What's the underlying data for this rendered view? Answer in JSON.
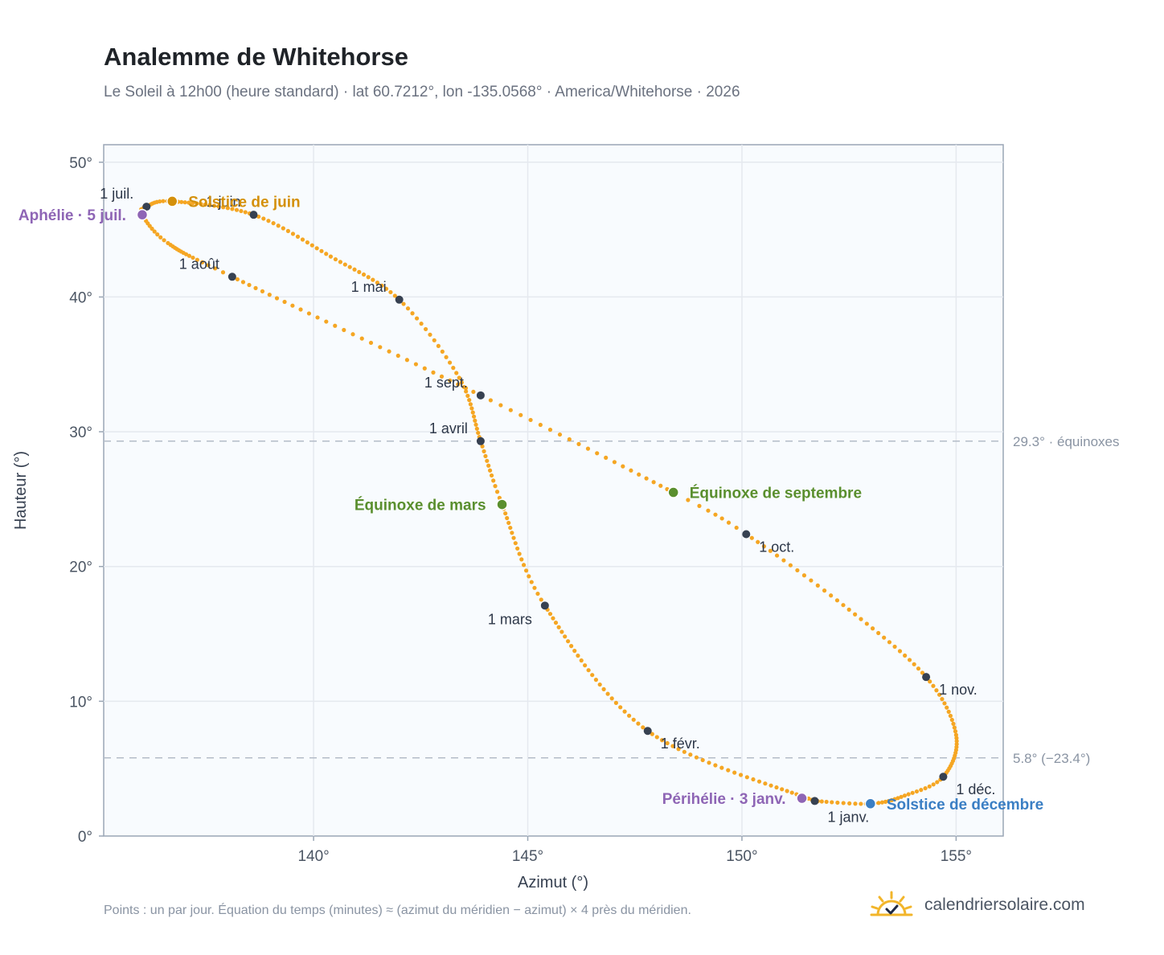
{
  "header": {
    "title": "Analemme de Whitehorse",
    "subtitle": "Le Soleil à 12h00 (heure standard) · lat 60.7212°, lon -135.0568° · America/Whitehorse · 2026"
  },
  "footer": {
    "note": "Points : un par jour. Équation du temps (minutes) ≈ (azimut du méridien − azimut) × 4 près du méridien.",
    "brand": "calendriersolaire.com",
    "brand_icon": "sun-check-icon"
  },
  "colors": {
    "curve": "#f5a623",
    "month_marker": "#374151",
    "solstice_june": "#d4900b",
    "solstice_december": "#3b7fc4",
    "equinox": "#5a8f2e",
    "apsis": "#8e65b5",
    "grid": "#e5e9ef",
    "plot_bg": "#f8fbfe",
    "ref_line": "#b4bcc8"
  },
  "chart_data": {
    "type": "scatter",
    "xlabel": "Azimut (°)",
    "ylabel": "Hauteur (°)",
    "xlim": [
      135.1,
      156.1
    ],
    "ylim": [
      0,
      51.3
    ],
    "xticks": [
      140,
      145,
      150,
      155
    ],
    "yticks": [
      0,
      10,
      20,
      30,
      40,
      50
    ],
    "tick_suffix": "°",
    "grid": true,
    "anchors": [
      {
        "day": 0,
        "x": 151.7,
        "y": 2.6
      },
      {
        "day": 31,
        "x": 147.8,
        "y": 7.8
      },
      {
        "day": 59,
        "x": 145.4,
        "y": 17.1
      },
      {
        "day": 78,
        "x": 144.4,
        "y": 24.6
      },
      {
        "day": 90,
        "x": 143.9,
        "y": 29.3
      },
      {
        "day": 105,
        "x": 143.4,
        "y": 34.0
      },
      {
        "day": 120,
        "x": 142.0,
        "y": 39.8
      },
      {
        "day": 135,
        "x": 140.4,
        "y": 43.0
      },
      {
        "day": 151,
        "x": 138.6,
        "y": 46.1
      },
      {
        "day": 171,
        "x": 136.7,
        "y": 47.1
      },
      {
        "day": 181,
        "x": 136.1,
        "y": 46.7
      },
      {
        "day": 185,
        "x": 136.0,
        "y": 46.1
      },
      {
        "day": 196,
        "x": 136.6,
        "y": 44.0
      },
      {
        "day": 212,
        "x": 138.1,
        "y": 41.5
      },
      {
        "day": 243,
        "x": 143.9,
        "y": 32.7
      },
      {
        "day": 265,
        "x": 148.4,
        "y": 25.5
      },
      {
        "day": 273,
        "x": 150.1,
        "y": 22.4
      },
      {
        "day": 289,
        "x": 152.5,
        "y": 16.8
      },
      {
        "day": 304,
        "x": 154.3,
        "y": 11.8
      },
      {
        "day": 318,
        "x": 155.0,
        "y": 7.5
      },
      {
        "day": 334,
        "x": 154.7,
        "y": 4.4
      },
      {
        "day": 344,
        "x": 153.8,
        "y": 3.0
      },
      {
        "day": 354,
        "x": 153.0,
        "y": 2.4
      },
      {
        "day": 365,
        "x": 151.7,
        "y": 2.6
      }
    ],
    "month_markers": [
      {
        "label": "1 janv.",
        "x": 151.7,
        "y": 2.6,
        "pos": "below-right"
      },
      {
        "label": "1 févr.",
        "x": 147.8,
        "y": 7.8,
        "pos": "right-below"
      },
      {
        "label": "1 mars",
        "x": 145.4,
        "y": 17.1,
        "pos": "left-below"
      },
      {
        "label": "1 avril",
        "x": 143.9,
        "y": 29.3,
        "pos": "left-above"
      },
      {
        "label": "1 mai",
        "x": 142.0,
        "y": 39.8,
        "pos": "left-above"
      },
      {
        "label": "1 juin",
        "x": 138.6,
        "y": 46.1,
        "pos": "left-above"
      },
      {
        "label": "1 juil.",
        "x": 136.1,
        "y": 46.7,
        "pos": "left-above"
      },
      {
        "label": "1 août",
        "x": 138.1,
        "y": 41.5,
        "pos": "left-above"
      },
      {
        "label": "1 sept.",
        "x": 143.9,
        "y": 32.7,
        "pos": "left-above"
      },
      {
        "label": "1 oct.",
        "x": 150.1,
        "y": 22.4,
        "pos": "right-below"
      },
      {
        "label": "1 nov.",
        "x": 154.3,
        "y": 11.8,
        "pos": "right-below"
      },
      {
        "label": "1 déc.",
        "x": 154.7,
        "y": 4.4,
        "pos": "right-below"
      }
    ],
    "events": [
      {
        "label": "Solstice de juin",
        "x": 136.7,
        "y": 47.1,
        "kind": "solstice_june",
        "pos": "right"
      },
      {
        "label": "Solstice de décembre",
        "x": 153.0,
        "y": 2.4,
        "kind": "solstice_december",
        "pos": "right"
      },
      {
        "label": "Équinoxe de mars",
        "x": 144.4,
        "y": 24.6,
        "kind": "equinox",
        "pos": "left"
      },
      {
        "label": "Équinoxe de septembre",
        "x": 148.4,
        "y": 25.5,
        "kind": "equinox",
        "pos": "right"
      },
      {
        "label": "Aphélie · 5 juil.",
        "x": 136.0,
        "y": 46.1,
        "kind": "apsis",
        "pos": "left"
      },
      {
        "label": "Périhélie · 3 janv.",
        "x": 151.4,
        "y": 2.8,
        "kind": "apsis",
        "pos": "left"
      }
    ],
    "reference_lines": [
      {
        "y": 29.3,
        "label": "29.3° · équinoxes"
      },
      {
        "y": 5.8,
        "label": "5.8° (−23.4°)"
      }
    ]
  }
}
